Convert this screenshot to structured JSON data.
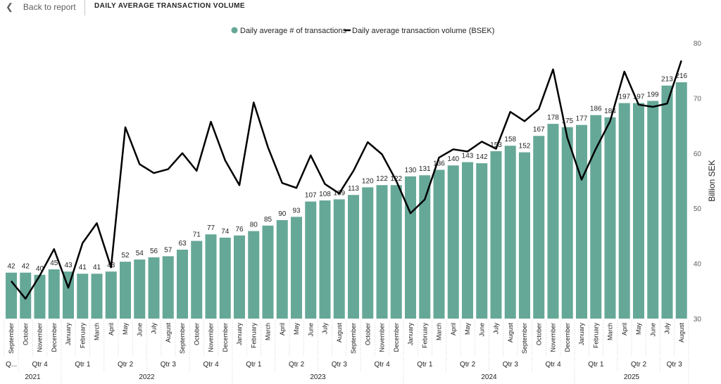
{
  "header": {
    "back_label": "Back to report",
    "title": "DAILY AVERAGE TRANSACTION VOLUME"
  },
  "colors": {
    "bar": "#66a898",
    "line": "#000000"
  },
  "chart_data": {
    "type": "bar+line",
    "title": "DAILY AVERAGE TRANSACTION VOLUME",
    "legend": {
      "position": "top-center",
      "bar_label": "Daily average # of transactions",
      "line_label": "Daily average transaction volume (BSEK)"
    },
    "categories": [
      "September",
      "October",
      "November",
      "December",
      "January",
      "February",
      "March",
      "April",
      "May",
      "June",
      "July",
      "August",
      "September",
      "October",
      "November",
      "December",
      "January",
      "February",
      "March",
      "April",
      "May",
      "June",
      "July",
      "August",
      "September",
      "October",
      "November",
      "December",
      "January",
      "February",
      "March",
      "April",
      "May",
      "June",
      "July",
      "August",
      "September",
      "October",
      "November",
      "December",
      "January",
      "February",
      "March",
      "April",
      "May",
      "June",
      "July",
      "August"
    ],
    "quarters": [
      {
        "label": "Q...",
        "span": 1
      },
      {
        "label": "Qtr 4",
        "span": 3
      },
      {
        "label": "Qtr 1",
        "span": 3
      },
      {
        "label": "Qtr 2",
        "span": 3
      },
      {
        "label": "Qtr 3",
        "span": 3
      },
      {
        "label": "Qtr 4",
        "span": 3
      },
      {
        "label": "Qtr 1",
        "span": 3
      },
      {
        "label": "Qtr 2",
        "span": 3
      },
      {
        "label": "Qtr 3",
        "span": 3
      },
      {
        "label": "Qtr 4",
        "span": 3
      },
      {
        "label": "Qtr 1",
        "span": 3
      },
      {
        "label": "Qtr 2",
        "span": 3
      },
      {
        "label": "Qtr 3",
        "span": 3
      },
      {
        "label": "Qtr 4",
        "span": 3
      },
      {
        "label": "Qtr 1",
        "span": 3
      },
      {
        "label": "Qtr 2",
        "span": 3
      },
      {
        "label": "Qtr 3",
        "span": 2
      }
    ],
    "years": [
      {
        "label": "2021",
        "span": 4
      },
      {
        "label": "2022",
        "span": 12
      },
      {
        "label": "2023",
        "span": 12
      },
      {
        "label": "2024",
        "span": 12
      },
      {
        "label": "2025",
        "span": 8
      }
    ],
    "series": [
      {
        "name": "Daily average # of transactions",
        "type": "bar",
        "values": [
          42,
          42,
          40,
          45,
          43,
          41,
          41,
          43,
          52,
          54,
          56,
          57,
          63,
          71,
          77,
          74,
          76,
          80,
          85,
          90,
          93,
          107,
          108,
          109,
          113,
          120,
          122,
          122,
          130,
          131,
          136,
          140,
          143,
          142,
          153,
          158,
          152,
          167,
          178,
          175,
          177,
          186,
          184,
          197,
          197,
          199,
          213,
          216
        ]
      },
      {
        "name": "Daily average transaction volume (BSEK)",
        "type": "line",
        "axis": "right",
        "values": [
          36.8,
          33.6,
          37.8,
          42.6,
          35.6,
          43.7,
          47.3,
          39.3,
          64.7,
          58.0,
          56.4,
          57.1,
          60.0,
          56.8,
          65.7,
          58.7,
          54.2,
          69.2,
          61.1,
          54.6,
          53.7,
          59.6,
          54.4,
          52.7,
          56.8,
          62.0,
          59.8,
          55.0,
          49.1,
          51.6,
          59.2,
          60.7,
          60.3,
          62.1,
          60.8,
          67.5,
          65.8,
          68.0,
          75.2,
          62.8,
          55.2,
          60.8,
          65.8,
          74.8,
          68.8,
          68.4,
          69.0,
          76.8
        ]
      }
    ],
    "left_axis": {
      "min": 0,
      "max": 252,
      "visible": false
    },
    "right_axis": {
      "label": "Billion SEK",
      "min": 30,
      "max": 80,
      "ticks": [
        30,
        40,
        50,
        60,
        70,
        80
      ]
    }
  }
}
